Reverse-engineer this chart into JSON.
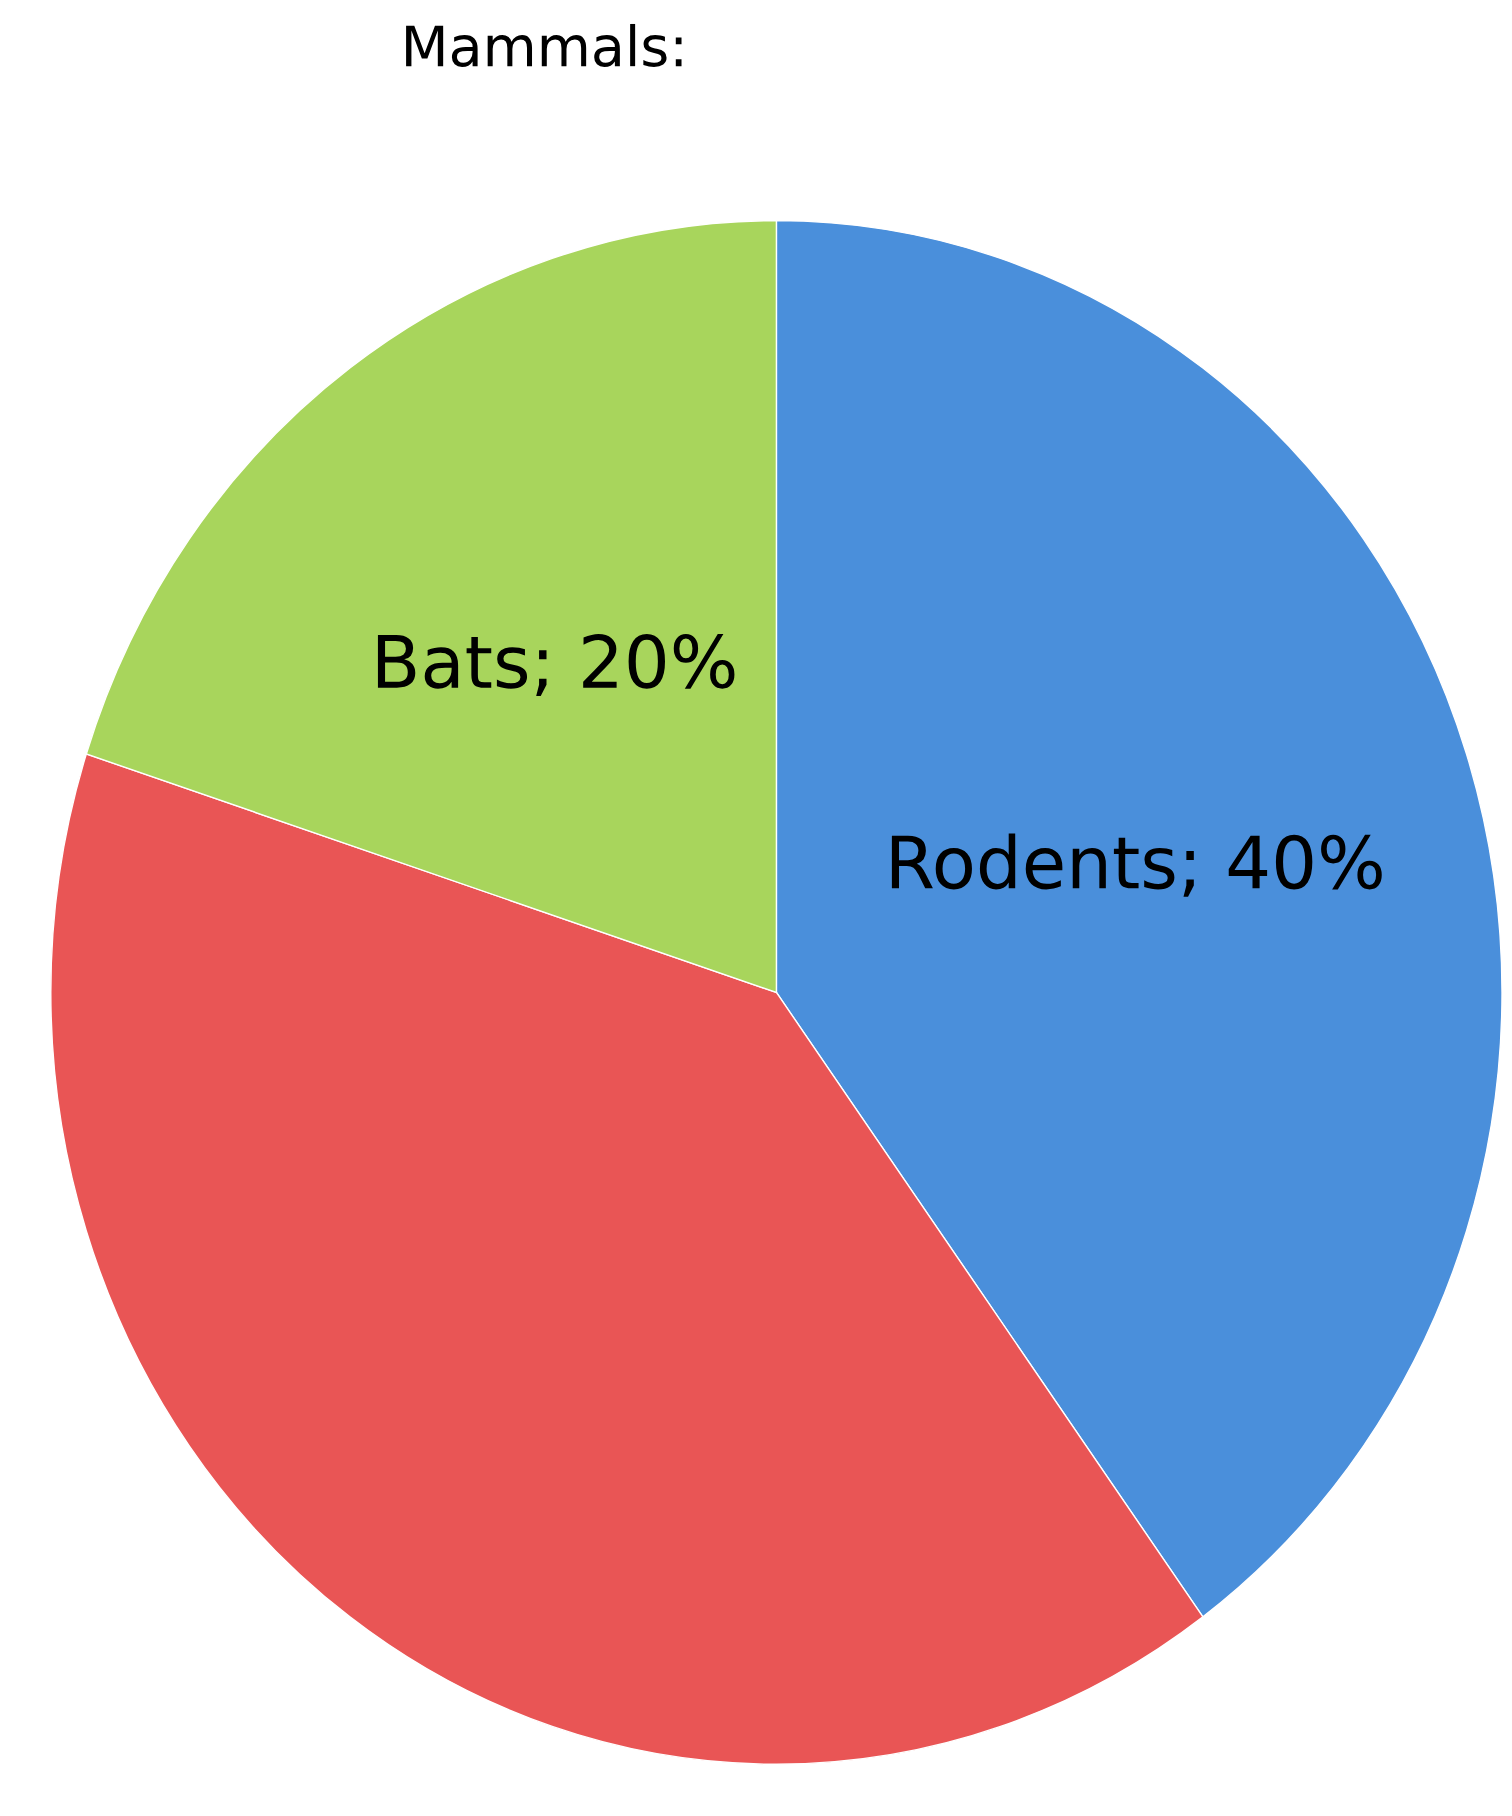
{
  "chart_data": {
    "type": "pie",
    "title": "Mammals:",
    "categories": [
      "Rodents",
      null,
      "Bats"
    ],
    "values": [
      40,
      40,
      20
    ],
    "value_labels": [
      "40%",
      null,
      "20%"
    ],
    "colors": [
      "#4a8fdb",
      "#e95555",
      "#a8d55c"
    ]
  }
}
